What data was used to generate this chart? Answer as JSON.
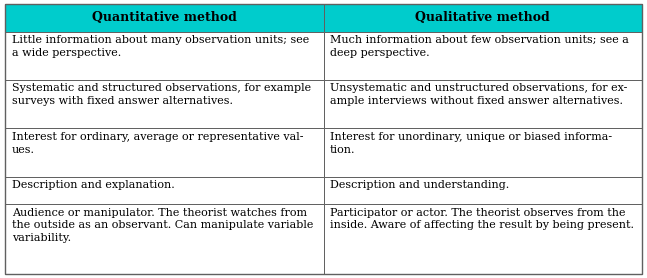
{
  "header": [
    "Quantitative method",
    "Qualitative method"
  ],
  "header_bg": "#00CCCC",
  "header_text_color": "#000000",
  "cell_bg": "#FFFFFF",
  "border_color": "#606060",
  "rows": [
    [
      "Little information about many observation units; see\na wide perspective.",
      "Much information about few observation units; see a\ndeep perspective."
    ],
    [
      "Systematic and structured observations, for example\nsurveys with fixed answer alternatives.",
      "Unsystematic and unstructured observations, for ex-\nample interviews without fixed answer alternatives."
    ],
    [
      "Interest for ordinary, average or representative val-\nues.",
      "Interest for unordinary, unique or biased informa-\ntion."
    ],
    [
      "Description and explanation.",
      "Description and understanding."
    ],
    [
      "Audience or manipulator. The theorist watches from\nthe outside as an observant. Can manipulate variable\nvariability.",
      "Participator or actor. The theorist observes from the\ninside. Aware of affecting the result by being present."
    ]
  ],
  "figsize": [
    6.47,
    2.78
  ],
  "dpi": 100,
  "font_size": 8.0,
  "header_font_size": 9.0
}
